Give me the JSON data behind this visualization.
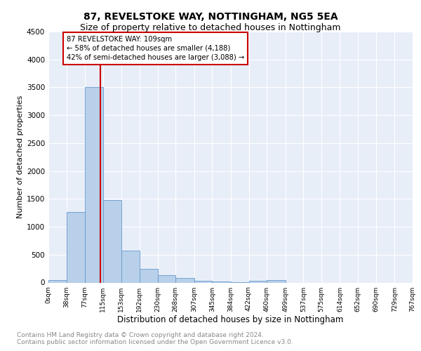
{
  "title": "87, REVELSTOKE WAY, NOTTINGHAM, NG5 5EA",
  "subtitle": "Size of property relative to detached houses in Nottingham",
  "xlabel": "Distribution of detached houses by size in Nottingham",
  "ylabel": "Number of detached properties",
  "bin_edges": [
    0,
    38,
    77,
    115,
    153,
    192,
    230,
    268,
    307,
    345,
    384,
    422,
    460,
    499,
    537,
    575,
    614,
    652,
    690,
    729,
    767
  ],
  "bin_labels": [
    "0sqm",
    "38sqm",
    "77sqm",
    "115sqm",
    "153sqm",
    "192sqm",
    "230sqm",
    "268sqm",
    "307sqm",
    "345sqm",
    "384sqm",
    "422sqm",
    "460sqm",
    "499sqm",
    "537sqm",
    "575sqm",
    "614sqm",
    "652sqm",
    "690sqm",
    "729sqm",
    "767sqm"
  ],
  "bar_heights": [
    45,
    1270,
    3500,
    1480,
    570,
    250,
    130,
    80,
    35,
    15,
    10,
    35,
    50,
    0,
    0,
    0,
    0,
    0,
    0,
    0
  ],
  "bar_color": "#b8d0ea",
  "bar_edge_color": "#6699cc",
  "vline_x": 109,
  "vline_color": "#cc0000",
  "annotation_text": "87 REVELSTOKE WAY: 109sqm\n← 58% of detached houses are smaller (4,188)\n42% of semi-detached houses are larger (3,088) →",
  "annotation_box_color": "#ffffff",
  "annotation_box_edge_color": "#cc0000",
  "ylim": [
    0,
    4500
  ],
  "yticks": [
    0,
    500,
    1000,
    1500,
    2000,
    2500,
    3000,
    3500,
    4000,
    4500
  ],
  "bg_color": "#e8eef8",
  "footer_text": "Contains HM Land Registry data © Crown copyright and database right 2024.\nContains public sector information licensed under the Open Government Licence v3.0.",
  "title_fontsize": 10,
  "subtitle_fontsize": 9,
  "ylabel_fontsize": 8,
  "xlabel_fontsize": 8.5
}
